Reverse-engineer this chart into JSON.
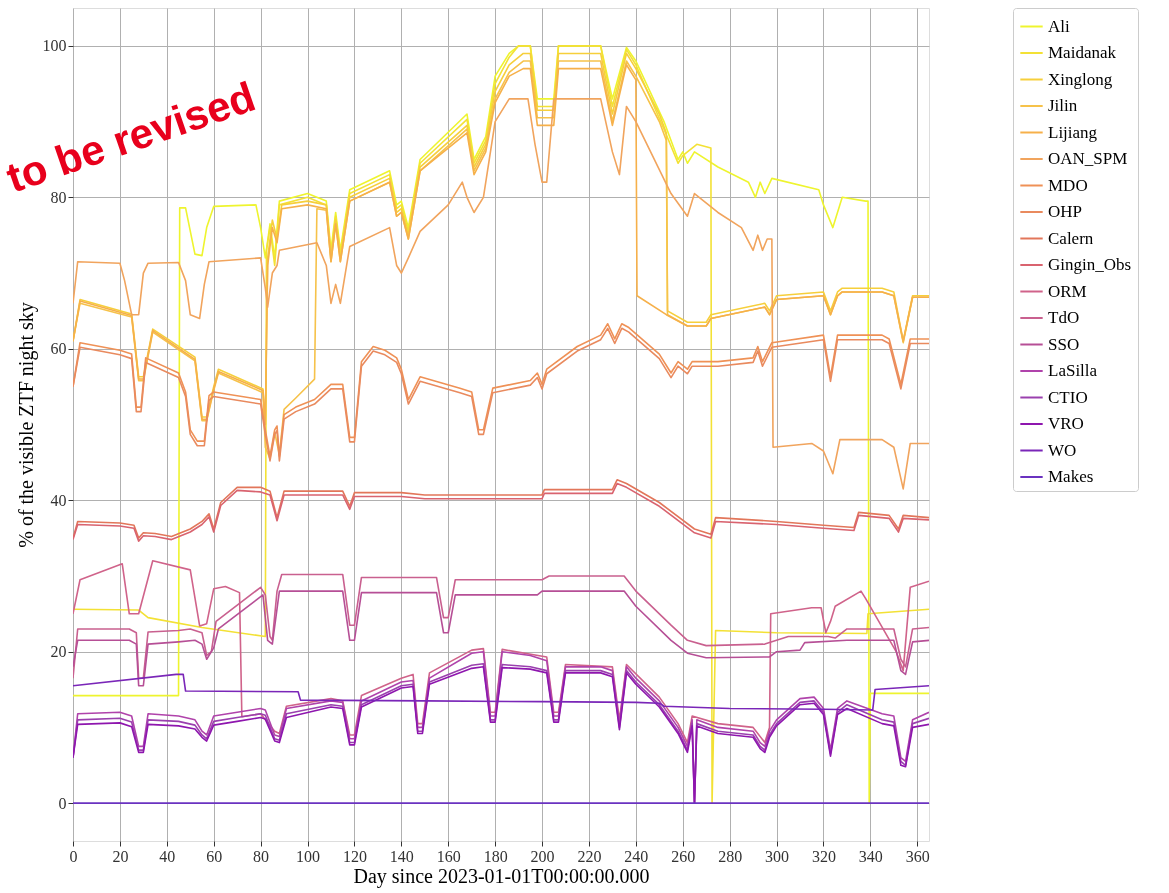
{
  "chart_data": {
    "type": "line",
    "xlabel": "Day since 2023-01-01T00:00:00.000",
    "ylabel": "% of the visible ZTF night sky",
    "annotations": [
      "to be revised"
    ],
    "xlim": [
      0,
      365
    ],
    "ylim": [
      -5,
      105
    ],
    "xticks": [
      0,
      20,
      40,
      60,
      80,
      100,
      120,
      140,
      160,
      180,
      200,
      220,
      240,
      260,
      280,
      300,
      320,
      340,
      360
    ],
    "yticks": [
      0,
      20,
      40,
      60,
      80,
      100
    ],
    "grid": true,
    "legend": "top right",
    "line_style": "solid",
    "series": [
      {
        "name": "Ali",
        "color": "#eef42e",
        "x": [
          0,
          45,
          45.5,
          48,
          52,
          55,
          57,
          60,
          78,
          80,
          82,
          84,
          86,
          88,
          100,
          108,
          110,
          112,
          114,
          118,
          135,
          138,
          140,
          143,
          148,
          168,
          171,
          176,
          180,
          186,
          190,
          195,
          198,
          205,
          207,
          225,
          230,
          236,
          240,
          252,
          258,
          260,
          262,
          265,
          275,
          288,
          291,
          293,
          295,
          298,
          318,
          320,
          324,
          328,
          338,
          339,
          339.5,
          340,
          365
        ],
        "values": [
          14.2,
          14.2,
          78.6,
          78.6,
          72.5,
          72.3,
          76,
          78.8,
          79,
          76,
          72,
          76.5,
          72,
          79.5,
          80.5,
          79.5,
          73,
          78,
          73,
          81,
          83.5,
          79,
          79.5,
          76,
          85,
          91,
          85,
          88,
          96,
          99,
          100,
          100,
          93,
          93,
          100,
          100,
          93,
          99.8,
          98,
          90,
          85,
          86,
          84.5,
          86,
          84,
          82,
          80,
          82,
          80.5,
          82.5,
          81,
          79,
          76,
          80,
          79.5,
          79.5,
          0,
          14.5,
          14.5
        ]
      },
      {
        "name": "Maidanak",
        "color": "#f3e135",
        "x": [
          0,
          28,
          32,
          55,
          82,
          82.5,
          84,
          86,
          88,
          100,
          108,
          110,
          112,
          114,
          118,
          135,
          138,
          140,
          143,
          148,
          168,
          171,
          176,
          180,
          186,
          190,
          195,
          198,
          205,
          207,
          225,
          230,
          236,
          240,
          252,
          258,
          260,
          266,
          272,
          272.5,
          274,
          300,
          338.5,
          339,
          365
        ],
        "values": [
          25.6,
          25.5,
          24.5,
          23.2,
          22,
          73,
          76,
          71,
          79,
          80,
          79,
          72.5,
          77.5,
          72.5,
          80.5,
          83,
          78.5,
          79,
          75.5,
          84.5,
          90.3,
          84.5,
          87.5,
          95,
          98.5,
          100,
          100,
          92,
          92,
          100,
          100,
          92,
          99.5,
          97.5,
          89,
          84.5,
          85.5,
          87,
          86.5,
          0,
          22.8,
          22.5,
          22.4,
          25,
          25.6
        ]
      },
      {
        "name": "Xinglong",
        "color": "#f6cf3b",
        "x": [
          0,
          3,
          25,
          28,
          30,
          34,
          52,
          55,
          57,
          60,
          62,
          81,
          82,
          83,
          85,
          87,
          89,
          100,
          108,
          110,
          112,
          114,
          118,
          135,
          138,
          140,
          143,
          148,
          168,
          171,
          176,
          180,
          186,
          192,
          195,
          198,
          205,
          207,
          225,
          230,
          236,
          240,
          250,
          253,
          253.5,
          262,
          270,
          272,
          295,
          297,
          300,
          320,
          323,
          326,
          328,
          345,
          350,
          354,
          358,
          365
        ],
        "values": [
          61,
          66.5,
          64.6,
          56.3,
          56.3,
          62.6,
          58.9,
          51,
          51,
          55,
          57.3,
          54.7,
          50,
          72,
          77,
          74.5,
          79,
          79.5,
          79,
          72,
          77,
          72,
          80,
          82.5,
          78,
          78.5,
          75,
          84,
          89.5,
          84,
          87,
          94,
          97.5,
          99,
          99,
          91.5,
          91.5,
          99,
          99,
          91,
          99,
          97,
          91,
          88.5,
          65,
          63.5,
          63.5,
          64.5,
          66,
          65,
          67,
          67.5,
          65,
          67.5,
          68,
          68,
          67.5,
          61,
          67,
          67
        ]
      },
      {
        "name": "Jilin",
        "color": "#f6c24a",
        "x": [
          0,
          3,
          25,
          28,
          30,
          34,
          52,
          55,
          57,
          60,
          62,
          81,
          82,
          84,
          86,
          88,
          90,
          95,
          103,
          104,
          108,
          110,
          112,
          114,
          118,
          135,
          138,
          140,
          143,
          148,
          168,
          171,
          176,
          180,
          186,
          192,
          195,
          198,
          205,
          207,
          225,
          230,
          236,
          240,
          250,
          253,
          253.5,
          262,
          270,
          272,
          295,
          297,
          300,
          320,
          323,
          326,
          328,
          345,
          350,
          354,
          358,
          365
        ],
        "values": [
          61,
          66,
          64.2,
          55.8,
          55.8,
          62.2,
          58.4,
          50.5,
          50.5,
          54.5,
          56.8,
          54.2,
          47,
          45.5,
          49,
          46,
          52,
          53.5,
          56,
          78.5,
          78.3,
          71.5,
          76.5,
          71.5,
          79.5,
          82,
          77.5,
          78,
          74.5,
          83.5,
          89,
          83.5,
          86.5,
          93,
          96.5,
          98,
          98,
          90.5,
          90.5,
          98,
          98,
          90,
          98,
          96,
          90,
          87.5,
          64.5,
          63,
          63,
          64,
          65.5,
          64.5,
          66.5,
          67,
          64.5,
          67,
          67.5,
          67.5,
          67,
          60.8,
          66.8,
          66.8
        ]
      },
      {
        "name": "Lijiang",
        "color": "#f6b04a",
        "x": [
          0,
          3,
          25,
          28,
          30,
          34,
          52,
          55,
          57,
          60,
          62,
          81,
          82,
          83,
          85,
          87,
          89,
          100,
          108,
          110,
          112,
          114,
          118,
          135,
          138,
          140,
          143,
          148,
          168,
          171,
          176,
          180,
          186,
          192,
          195,
          198,
          205,
          207,
          225,
          230,
          236,
          240,
          240.5,
          253,
          262,
          270,
          272,
          295,
          297,
          300,
          320,
          323,
          326,
          328,
          345,
          350,
          354,
          358,
          365
        ],
        "values": [
          61,
          66.3,
          64.4,
          56,
          56,
          62.4,
          58.6,
          50.7,
          50.7,
          54.7,
          57,
          54.5,
          50,
          71,
          76,
          74,
          78.5,
          79,
          78.5,
          71.5,
          76.5,
          71.5,
          79.5,
          82,
          77.5,
          78,
          74.5,
          83.5,
          88.5,
          83,
          86,
          92.5,
          96,
          97,
          97,
          89.5,
          89.5,
          97,
          97,
          89.5,
          97.5,
          95.5,
          67,
          64.5,
          63,
          63,
          64,
          65.5,
          64.5,
          66.5,
          67,
          64.5,
          67,
          67.5,
          67.5,
          67,
          61,
          66.8,
          66.8
        ]
      },
      {
        "name": "OAN_SPM",
        "color": "#f1a45d",
        "x": [
          0,
          2,
          20,
          22,
          25,
          28,
          30,
          32,
          45,
          48,
          50,
          54,
          56,
          58,
          80,
          82,
          83,
          85,
          87,
          88,
          104,
          108,
          110,
          112,
          114,
          118,
          135,
          138,
          140,
          143,
          148,
          160,
          166,
          168,
          171,
          175,
          180,
          186,
          194,
          197,
          200,
          202,
          205,
          225,
          230,
          233,
          236,
          240,
          255,
          262,
          265,
          275,
          285,
          290,
          292,
          294,
          296,
          298,
          298.5,
          315,
          320,
          324,
          327,
          345,
          350,
          354,
          357,
          365
        ],
        "values": [
          66,
          71.5,
          71.3,
          69,
          64.5,
          64.5,
          70,
          71.3,
          71.4,
          69,
          64.5,
          64,
          68.5,
          71.5,
          72,
          68,
          65.5,
          70,
          71,
          73,
          74,
          71,
          66,
          68.5,
          66,
          73.5,
          76,
          71,
          70,
          72,
          75.5,
          79,
          82,
          80,
          78,
          80,
          90,
          93,
          93,
          87,
          82,
          82,
          93,
          93,
          86,
          83,
          92,
          90,
          80.5,
          77.5,
          80.5,
          78,
          76,
          73,
          75,
          73,
          74.5,
          74.5,
          47,
          47.5,
          46.5,
          43.5,
          48,
          48,
          47,
          41.5,
          47.5,
          47.5
        ]
      },
      {
        "name": "MDO",
        "color": "#ef9156",
        "x": [
          0,
          3,
          20,
          25,
          27,
          29,
          31,
          45,
          48,
          50,
          53,
          56,
          58,
          60,
          80,
          82,
          84,
          86,
          87,
          88,
          90,
          95,
          103,
          110,
          115,
          118,
          120,
          123,
          128,
          133,
          138,
          140,
          143,
          148,
          165,
          170,
          173,
          175,
          179,
          195,
          198,
          200,
          202,
          215,
          225,
          228,
          231,
          234,
          237,
          250,
          255,
          258,
          262,
          264,
          275,
          290,
          292,
          294,
          298,
          320,
          323,
          326,
          345,
          348,
          353,
          357,
          365
        ],
        "values": [
          55,
          60.8,
          59.8,
          59.3,
          52.3,
          52.3,
          58.8,
          56.8,
          54.3,
          49.3,
          47.8,
          47.8,
          53.8,
          54.3,
          53.3,
          49.3,
          45.8,
          49.3,
          49.8,
          45.8,
          51.3,
          52.3,
          53.3,
          55.3,
          55.3,
          48.3,
          48.3,
          58.3,
          60.3,
          59.8,
          58.8,
          57.3,
          53.3,
          56.3,
          54.8,
          54.3,
          49.3,
          49.3,
          54.8,
          55.8,
          56.8,
          55.3,
          57.3,
          60.3,
          61.8,
          63.3,
          61.3,
          63.3,
          62.8,
          59.3,
          56.8,
          58.3,
          57.3,
          58.3,
          58.3,
          58.8,
          60.3,
          58.3,
          60.8,
          61.8,
          56.3,
          61.8,
          61.8,
          61.3,
          55.3,
          61.3,
          61.3
        ]
      },
      {
        "name": "OHP",
        "color": "#e98a5e",
        "x": [
          0,
          3,
          20,
          25,
          27,
          29,
          31,
          45,
          48,
          50,
          53,
          56,
          58,
          60,
          80,
          82,
          84,
          86,
          87,
          88,
          90,
          95,
          103,
          110,
          115,
          118,
          120,
          123,
          128,
          133,
          138,
          140,
          143,
          148,
          165,
          170,
          173,
          175,
          179,
          195,
          198,
          200,
          202,
          215,
          225,
          228,
          231,
          234,
          237,
          250,
          255,
          258,
          262,
          264,
          275,
          290,
          292,
          294,
          298,
          320,
          323,
          326,
          345,
          348,
          353,
          357,
          365
        ],
        "values": [
          55,
          60.2,
          59.2,
          58.7,
          51.7,
          51.7,
          58.2,
          56.2,
          53.7,
          48.7,
          47.2,
          47.2,
          53.2,
          53.7,
          52.7,
          48.7,
          45.2,
          48.7,
          49.2,
          45.2,
          50.7,
          51.7,
          52.7,
          54.7,
          54.7,
          47.7,
          47.7,
          57.7,
          59.7,
          59.2,
          58.2,
          56.7,
          52.7,
          55.7,
          54.2,
          53.7,
          48.7,
          48.7,
          54.2,
          55.2,
          56.2,
          54.7,
          56.7,
          59.7,
          61.2,
          62.7,
          60.7,
          62.7,
          62.2,
          58.7,
          56.2,
          57.7,
          56.7,
          57.7,
          57.7,
          58.2,
          59.7,
          57.7,
          60.2,
          61.2,
          55.7,
          61.2,
          61.2,
          60.7,
          54.7,
          60.7,
          60.7
        ]
      },
      {
        "name": "Calern",
        "color": "#e2765a",
        "x": [
          0,
          2,
          20,
          26,
          28,
          30,
          35,
          42,
          50,
          55,
          58,
          60,
          63,
          70,
          80,
          84,
          87,
          90,
          110,
          115,
          118,
          120,
          140,
          150,
          200,
          201,
          230,
          232,
          236,
          250,
          265,
          272,
          274,
          300,
          320,
          333,
          335,
          348,
          352,
          354,
          365
        ],
        "values": [
          35,
          37.2,
          37,
          36.7,
          35,
          35.7,
          35.6,
          35.2,
          36.2,
          37.2,
          38.2,
          36.2,
          39.7,
          41.7,
          41.7,
          41.2,
          37.7,
          41.2,
          41.2,
          41.2,
          39.2,
          41,
          41,
          40.7,
          40.7,
          41.4,
          41.4,
          42.7,
          42.2,
          39.7,
          36.2,
          35.5,
          37.7,
          37.2,
          36.7,
          36.4,
          38.4,
          38,
          36.2,
          38,
          37.7
        ]
      },
      {
        "name": "Gingin_Obs",
        "color": "#d9636f",
        "x": [
          0,
          2,
          20,
          26,
          28,
          30,
          35,
          42,
          50,
          55,
          58,
          60,
          63,
          70,
          80,
          84,
          87,
          90,
          110,
          115,
          118,
          120,
          140,
          150,
          200,
          201,
          230,
          232,
          236,
          250,
          265,
          272,
          274,
          300,
          320,
          333,
          335,
          348,
          352,
          354,
          365
        ],
        "values": [
          34.8,
          36.8,
          36.6,
          36.3,
          34.6,
          35.3,
          35.2,
          34.8,
          35.8,
          36.8,
          37.8,
          35.8,
          39.3,
          41.3,
          41.1,
          40.7,
          37.3,
          40.7,
          40.7,
          40.7,
          38.8,
          40.5,
          40.5,
          40.2,
          40.2,
          40.9,
          40.9,
          42.2,
          41.7,
          39.2,
          35.7,
          35,
          37.2,
          36.8,
          36.3,
          36,
          38,
          37.6,
          35.8,
          37.6,
          37.4
        ]
      },
      {
        "name": "ORM",
        "color": "#d0638a",
        "x": [
          0,
          3,
          21,
          24,
          28,
          34,
          50,
          54,
          57,
          60,
          65,
          71,
          72,
          80,
          86,
          88,
          91,
          110,
          115,
          118,
          120,
          123,
          140,
          145,
          147,
          149,
          152,
          170,
          175,
          178,
          180,
          183,
          202,
          205,
          207,
          210,
          230,
          233,
          236,
          250,
          258,
          262,
          264,
          275,
          290,
          295,
          297,
          297.5,
          315,
          319,
          321,
          323,
          325,
          336,
          338,
          351,
          354,
          357,
          365
        ],
        "values": [
          25,
          29.5,
          31.6,
          25,
          25,
          32,
          30.8,
          23.4,
          23.7,
          28.3,
          28.6,
          27.8,
          11.4,
          11.8,
          9.5,
          9.2,
          12.8,
          13.8,
          13.5,
          9,
          9,
          14.2,
          16.5,
          17,
          10.5,
          10.5,
          17.2,
          20.2,
          20.4,
          12,
          12,
          20.3,
          19.3,
          12,
          12,
          18.3,
          18,
          11,
          18.3,
          14,
          10.5,
          8,
          11.5,
          10.5,
          10,
          8,
          10,
          25,
          25.8,
          25.8,
          22.5,
          24,
          26,
          28,
          27,
          20,
          17.5,
          28.5,
          29.3
        ]
      },
      {
        "name": "TdO",
        "color": "#c9608f",
        "x": [
          0,
          2,
          24,
          27,
          28,
          30,
          32,
          45,
          50,
          55,
          57,
          59,
          61,
          80,
          82,
          84,
          85,
          87,
          89,
          115,
          118,
          120,
          123,
          155,
          158,
          160,
          163,
          200,
          203,
          235,
          240,
          255,
          262,
          270,
          295,
          300,
          305,
          322,
          325,
          330,
          350,
          353,
          355,
          358,
          365
        ],
        "values": [
          16.5,
          23,
          23,
          22.5,
          16.5,
          16.5,
          22.6,
          22.8,
          23,
          22.5,
          19.5,
          20,
          24,
          28.5,
          27.5,
          22,
          21.5,
          28,
          30.2,
          30.2,
          23.5,
          23.5,
          29.8,
          29.8,
          24.5,
          24.5,
          29.5,
          29.5,
          30,
          30,
          28,
          23.5,
          21.5,
          20.8,
          21,
          21.5,
          22,
          22,
          21.8,
          23,
          23,
          19,
          18,
          23,
          23.2
        ]
      },
      {
        "name": "SSO",
        "color": "#b64f96",
        "x": [
          0,
          2,
          24,
          27,
          28,
          30,
          32,
          45,
          52,
          55,
          57,
          60,
          62,
          81,
          83,
          85,
          88,
          115,
          118,
          120,
          123,
          155,
          158,
          160,
          163,
          198,
          200,
          235,
          240,
          255,
          262,
          270,
          297,
          300,
          310,
          312,
          330,
          350,
          353,
          355,
          358,
          365
        ],
        "values": [
          18,
          21.5,
          21.5,
          21,
          15.5,
          15.5,
          21,
          21.3,
          21.5,
          21,
          19,
          20.5,
          23,
          27.5,
          21.5,
          21,
          28,
          28,
          21.5,
          21.5,
          27.8,
          27.8,
          22.5,
          22.5,
          27.5,
          27.5,
          28,
          28,
          26,
          21.5,
          19.8,
          19.2,
          19.3,
          20,
          20.2,
          21.2,
          21.5,
          21.5,
          17.5,
          17,
          21.3,
          21.5
        ]
      },
      {
        "name": "LaSilla",
        "color": "#b043ab",
        "x": [
          0,
          2,
          20,
          25,
          28,
          30,
          32,
          45,
          52,
          55,
          57,
          60,
          70,
          80,
          82,
          86,
          88,
          91,
          110,
          115,
          118,
          120,
          123,
          140,
          145,
          147,
          149,
          152,
          170,
          175,
          178,
          180,
          183,
          195,
          202,
          205,
          207,
          210,
          225,
          230,
          233,
          236,
          240,
          250,
          258,
          262,
          264,
          265,
          266,
          275,
          290,
          293,
          295,
          297,
          300,
          310,
          316,
          320,
          323,
          326,
          330,
          345,
          350,
          353,
          355,
          358,
          365
        ],
        "values": [
          6,
          11.8,
          12,
          11.5,
          7.5,
          7.5,
          11.8,
          11.5,
          11,
          9.5,
          9,
          11.5,
          12,
          12.5,
          12.3,
          9,
          8.8,
          12.5,
          13.5,
          13.3,
          8.5,
          8.5,
          13.5,
          16,
          16.2,
          10,
          10,
          16.5,
          19.8,
          20,
          11.5,
          11.5,
          20,
          19.5,
          18.8,
          11.5,
          11.5,
          18,
          18,
          17.5,
          10.5,
          18,
          16.5,
          13.5,
          10,
          7.5,
          11,
          0,
          11,
          10,
          9.5,
          8,
          7.5,
          9.5,
          11,
          13.8,
          14,
          12.5,
          7,
          12.5,
          13.5,
          11.8,
          11.5,
          6,
          5.5,
          11,
          12
        ]
      },
      {
        "name": "CTIO",
        "color": "#9a40ae",
        "x": [
          0,
          2,
          20,
          25,
          28,
          30,
          32,
          45,
          52,
          55,
          57,
          60,
          70,
          80,
          82,
          86,
          88,
          91,
          110,
          115,
          118,
          120,
          123,
          140,
          145,
          147,
          149,
          152,
          170,
          175,
          178,
          180,
          183,
          195,
          202,
          205,
          207,
          210,
          225,
          230,
          233,
          236,
          240,
          250,
          258,
          262,
          264,
          265,
          266,
          275,
          290,
          293,
          295,
          297,
          300,
          310,
          316,
          320,
          323,
          326,
          330,
          345,
          350,
          353,
          355,
          358,
          365
        ],
        "values": [
          6,
          11,
          11.2,
          10.7,
          7,
          7,
          11,
          10.8,
          10.3,
          9,
          8.5,
          10.8,
          11.3,
          11.8,
          11.6,
          8.5,
          8.3,
          11.8,
          13,
          12.8,
          8,
          8,
          13,
          15.5,
          15.7,
          9.5,
          9.5,
          16,
          18.2,
          18.4,
          11,
          11,
          18.3,
          18,
          17.5,
          11,
          11,
          17.5,
          17.5,
          17,
          10,
          17.5,
          16,
          13,
          9.5,
          7,
          10.5,
          0,
          10.5,
          9.5,
          9,
          7.5,
          7,
          9,
          10.5,
          13.3,
          13.5,
          12,
          6.5,
          12,
          13,
          11,
          10.7,
          5.5,
          5,
          10.5,
          11.2
        ]
      },
      {
        "name": "VRO",
        "color": "#8e16ae",
        "x": [
          0,
          2,
          20,
          25,
          28,
          30,
          32,
          45,
          52,
          55,
          57,
          60,
          70,
          80,
          82,
          86,
          88,
          91,
          110,
          115,
          118,
          120,
          123,
          140,
          145,
          147,
          149,
          152,
          170,
          175,
          178,
          180,
          183,
          195,
          202,
          205,
          207,
          210,
          225,
          230,
          233,
          236,
          240,
          250,
          258,
          262,
          264,
          265,
          266,
          275,
          290,
          293,
          295,
          297,
          300,
          310,
          316,
          320,
          323,
          326,
          330,
          345,
          350,
          353,
          355,
          358,
          365
        ],
        "values": [
          6,
          10.4,
          10.6,
          10.1,
          6.7,
          6.7,
          10.4,
          10.2,
          9.8,
          8.7,
          8.2,
          10.3,
          10.8,
          11.3,
          11.1,
          8.2,
          8,
          11.3,
          12.7,
          12.5,
          7.7,
          7.7,
          12.7,
          15.2,
          15.4,
          9.2,
          9.2,
          15.7,
          17.8,
          18,
          10.7,
          10.7,
          17.9,
          17.7,
          17.2,
          10.7,
          10.7,
          17.2,
          17.2,
          16.7,
          9.7,
          17.2,
          15.7,
          12.7,
          9.2,
          6.7,
          10.2,
          0,
          10.2,
          9.2,
          8.7,
          7.2,
          6.7,
          8.7,
          10.2,
          13,
          13.2,
          11.7,
          6.2,
          11.7,
          12.5,
          10.5,
          10.2,
          5,
          4.8,
          10,
          10.4
        ]
      },
      {
        "name": "WO",
        "color": "#7a26b8",
        "x": [
          0,
          44,
          47,
          48,
          96,
          97,
          150,
          200,
          240,
          250,
          252,
          280,
          320,
          341,
          342,
          365
        ],
        "values": [
          15.5,
          17,
          17,
          14.8,
          14.7,
          13.6,
          13.5,
          13.4,
          13.3,
          13.2,
          12.8,
          12.5,
          12.4,
          12.3,
          15,
          15.5
        ]
      },
      {
        "name": "Makes",
        "color": "#6a32c0",
        "x": [
          0,
          365
        ],
        "values": [
          0,
          0
        ]
      }
    ]
  }
}
